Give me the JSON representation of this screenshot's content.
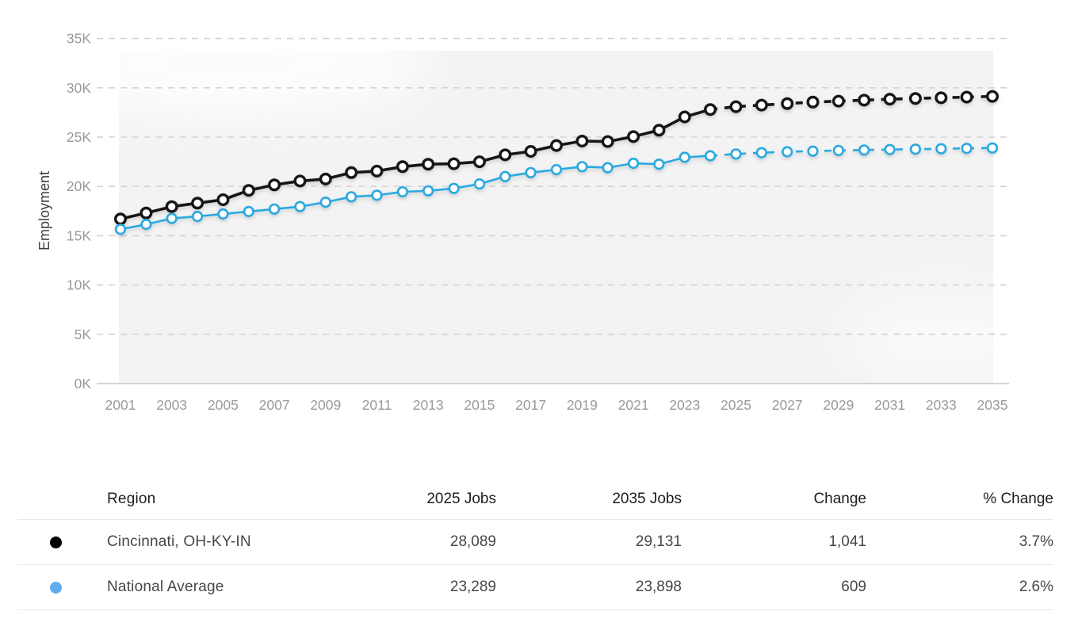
{
  "chart_data": {
    "type": "line",
    "title": "",
    "xlabel": "",
    "ylabel": "Employment",
    "ylim": [
      0,
      35000
    ],
    "y_tick_step": 5000,
    "y_tick_labels": [
      "0K",
      "5K",
      "10K",
      "15K",
      "20K",
      "25K",
      "30K",
      "35K"
    ],
    "x_tick_labels": [
      "2001",
      "2003",
      "2005",
      "2007",
      "2009",
      "2011",
      "2013",
      "2015",
      "2017",
      "2019",
      "2021",
      "2023",
      "2025",
      "2027",
      "2029",
      "2031",
      "2033",
      "2035"
    ],
    "x": [
      2001,
      2002,
      2003,
      2004,
      2005,
      2006,
      2007,
      2008,
      2009,
      2010,
      2011,
      2012,
      2013,
      2014,
      2015,
      2016,
      2017,
      2018,
      2019,
      2020,
      2021,
      2022,
      2023,
      2024,
      2025,
      2026,
      2027,
      2028,
      2029,
      2030,
      2031,
      2032,
      2033,
      2034,
      2035
    ],
    "solid_until_year": 2024,
    "projection_style": "dashed",
    "grid": "horizontal-dashed",
    "legend_position": "table-below",
    "series": [
      {
        "name": "Cincinnati, OH-KY-IN",
        "color": "#161616",
        "values": [
          16700,
          17300,
          17950,
          18300,
          18650,
          19600,
          20150,
          20550,
          20750,
          21400,
          21550,
          22000,
          22250,
          22300,
          22500,
          23200,
          23550,
          24150,
          24600,
          24550,
          25050,
          25700,
          27050,
          27800,
          28089,
          28250,
          28400,
          28550,
          28650,
          28750,
          28850,
          28920,
          28990,
          29060,
          29131
        ]
      },
      {
        "name": "National Average",
        "color": "#29a9e0",
        "values": [
          15650,
          16150,
          16750,
          16950,
          17200,
          17450,
          17700,
          17950,
          18400,
          18950,
          19100,
          19450,
          19550,
          19800,
          20250,
          21000,
          21400,
          21700,
          22000,
          21900,
          22350,
          22250,
          22950,
          23100,
          23289,
          23420,
          23510,
          23580,
          23640,
          23690,
          23740,
          23780,
          23820,
          23860,
          23898
        ]
      }
    ]
  },
  "table": {
    "headers": [
      "Region",
      "2025 Jobs",
      "2035 Jobs",
      "Change",
      "% Change"
    ],
    "rows": [
      {
        "dot_color": "#000000",
        "region": "Cincinnati, OH-KY-IN",
        "jobs_2025": "28,089",
        "jobs_2035": "29,131",
        "change": "1,041",
        "pct_change": "3.7%"
      },
      {
        "dot_color": "#5fadef",
        "region": "National Average",
        "jobs_2025": "23,289",
        "jobs_2035": "23,898",
        "change": "609",
        "pct_change": "2.6%"
      }
    ]
  }
}
